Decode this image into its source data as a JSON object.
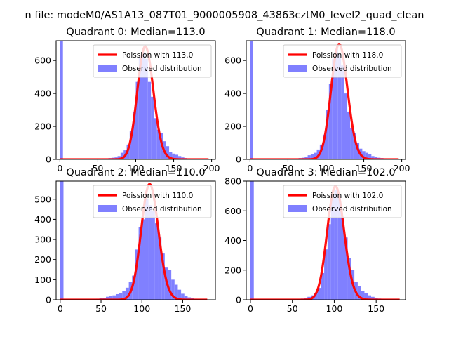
{
  "figure": {
    "suptitle": "n file: modeM0/AS1A13_087T01_9000005908_43863cztM0_level2_quad_clean"
  },
  "colors": {
    "poisson": "#ff0000",
    "observed": "#8080ff",
    "axes": "#000000",
    "background": "#ffffff"
  },
  "chart_data": [
    {
      "type": "bar",
      "title": "Quadrant 0: Median=113.0",
      "median": 113,
      "xlim": [
        -5,
        205
      ],
      "ylim": [
        0,
        720
      ],
      "xticks": [
        0,
        50,
        100,
        150,
        200
      ],
      "yticks": [
        0,
        200,
        400,
        600
      ],
      "bin_width": 4,
      "legend": {
        "position": "upper-right",
        "entries": [
          "Poission with 113.0",
          "Observed distribution"
        ]
      },
      "series": [
        {
          "kind": "histogram",
          "bins_left": [
            0,
            40,
            44,
            48,
            52,
            56,
            60,
            64,
            68,
            72,
            76,
            80,
            84,
            88,
            92,
            96,
            100,
            104,
            108,
            112,
            116,
            120,
            124,
            128,
            132,
            136,
            140,
            144,
            148,
            152,
            156,
            160,
            164,
            168,
            172,
            176,
            180,
            184,
            188,
            192
          ],
          "counts": [
            720,
            1,
            1,
            2,
            3,
            5,
            6,
            8,
            10,
            12,
            20,
            40,
            55,
            90,
            170,
            290,
            470,
            620,
            650,
            610,
            470,
            380,
            250,
            180,
            160,
            110,
            80,
            45,
            35,
            28,
            20,
            12,
            8,
            6,
            4,
            3,
            2,
            1,
            1,
            1
          ]
        },
        {
          "name": "Poission with 113.0",
          "kind": "poisson",
          "lambda": 113,
          "scale": 685,
          "x_range": [
            0,
            196
          ]
        }
      ]
    },
    {
      "type": "bar",
      "title": "Quadrant 1: Median=118.0",
      "median": 118,
      "xlim": [
        -5,
        205
      ],
      "ylim": [
        0,
        720
      ],
      "xticks": [
        0,
        50,
        100,
        150,
        200
      ],
      "yticks": [
        0,
        200,
        400,
        600
      ],
      "bin_width": 4,
      "legend": {
        "position": "upper-right",
        "entries": [
          "Poission with 118.0",
          "Observed distribution"
        ]
      },
      "series": [
        {
          "kind": "histogram",
          "bins_left": [
            0,
            48,
            52,
            56,
            60,
            64,
            68,
            72,
            76,
            80,
            84,
            88,
            92,
            96,
            100,
            104,
            108,
            112,
            116,
            120,
            124,
            128,
            132,
            136,
            140,
            144,
            148,
            152,
            156,
            160,
            164,
            168,
            172,
            176,
            180,
            184,
            188,
            192
          ],
          "counts": [
            720,
            1,
            2,
            3,
            5,
            8,
            10,
            15,
            25,
            30,
            40,
            60,
            90,
            150,
            300,
            460,
            610,
            670,
            640,
            570,
            400,
            290,
            190,
            160,
            100,
            65,
            50,
            40,
            30,
            20,
            14,
            10,
            8,
            6,
            4,
            3,
            2,
            1
          ]
        },
        {
          "name": "Poission with 118.0",
          "kind": "poisson",
          "lambda": 118,
          "scale": 700,
          "x_range": [
            0,
            196
          ]
        }
      ]
    },
    {
      "type": "bar",
      "title": "Quadrant 2: Median=110.0",
      "median": 110,
      "xlim": [
        -5,
        190
      ],
      "ylim": [
        0,
        590
      ],
      "xticks": [
        0,
        50,
        100,
        150
      ],
      "yticks": [
        0,
        100,
        200,
        300,
        400,
        500
      ],
      "bin_width": 4,
      "legend": {
        "position": "upper-right",
        "entries": [
          "Poission with 110.0",
          "Observed distribution"
        ]
      },
      "series": [
        {
          "kind": "histogram",
          "bins_left": [
            0,
            32,
            36,
            40,
            44,
            48,
            52,
            56,
            60,
            64,
            68,
            72,
            76,
            80,
            84,
            88,
            92,
            96,
            100,
            104,
            108,
            112,
            116,
            120,
            124,
            128,
            132,
            136,
            140,
            144,
            148,
            152,
            156,
            160,
            164,
            168,
            172,
            176
          ],
          "counts": [
            590,
            1,
            2,
            3,
            5,
            8,
            10,
            15,
            20,
            22,
            28,
            35,
            45,
            60,
            90,
            120,
            250,
            360,
            400,
            500,
            470,
            440,
            380,
            310,
            230,
            160,
            150,
            100,
            75,
            50,
            30,
            20,
            12,
            8,
            5,
            3,
            2,
            1
          ]
        },
        {
          "name": "Poission with 110.0",
          "kind": "poisson",
          "lambda": 110,
          "scale": 575,
          "x_range": [
            0,
            180
          ]
        }
      ]
    },
    {
      "type": "bar",
      "title": "Quadrant 3: Median=102.0",
      "median": 102,
      "xlim": [
        -5,
        185
      ],
      "ylim": [
        0,
        800
      ],
      "xticks": [
        0,
        50,
        100,
        150
      ],
      "yticks": [
        0,
        200,
        400,
        600,
        800
      ],
      "bin_width": 4,
      "legend": {
        "position": "upper-right",
        "entries": [
          "Poission with 102.0",
          "Observed distribution"
        ]
      },
      "series": [
        {
          "kind": "histogram",
          "bins_left": [
            0,
            44,
            48,
            52,
            56,
            60,
            64,
            68,
            72,
            76,
            80,
            84,
            88,
            92,
            96,
            100,
            104,
            108,
            112,
            116,
            120,
            124,
            128,
            132,
            136,
            140,
            144,
            148,
            152,
            156,
            160,
            164,
            168,
            172
          ],
          "counts": [
            800,
            1,
            2,
            3,
            5,
            8,
            12,
            20,
            30,
            45,
            80,
            180,
            340,
            510,
            710,
            740,
            700,
            560,
            420,
            280,
            200,
            120,
            90,
            60,
            45,
            30,
            20,
            12,
            8,
            6,
            4,
            3,
            2,
            1
          ]
        },
        {
          "name": "Poission with 102.0",
          "kind": "poisson",
          "lambda": 102,
          "scale": 765,
          "x_range": [
            0,
            178
          ]
        }
      ]
    }
  ]
}
